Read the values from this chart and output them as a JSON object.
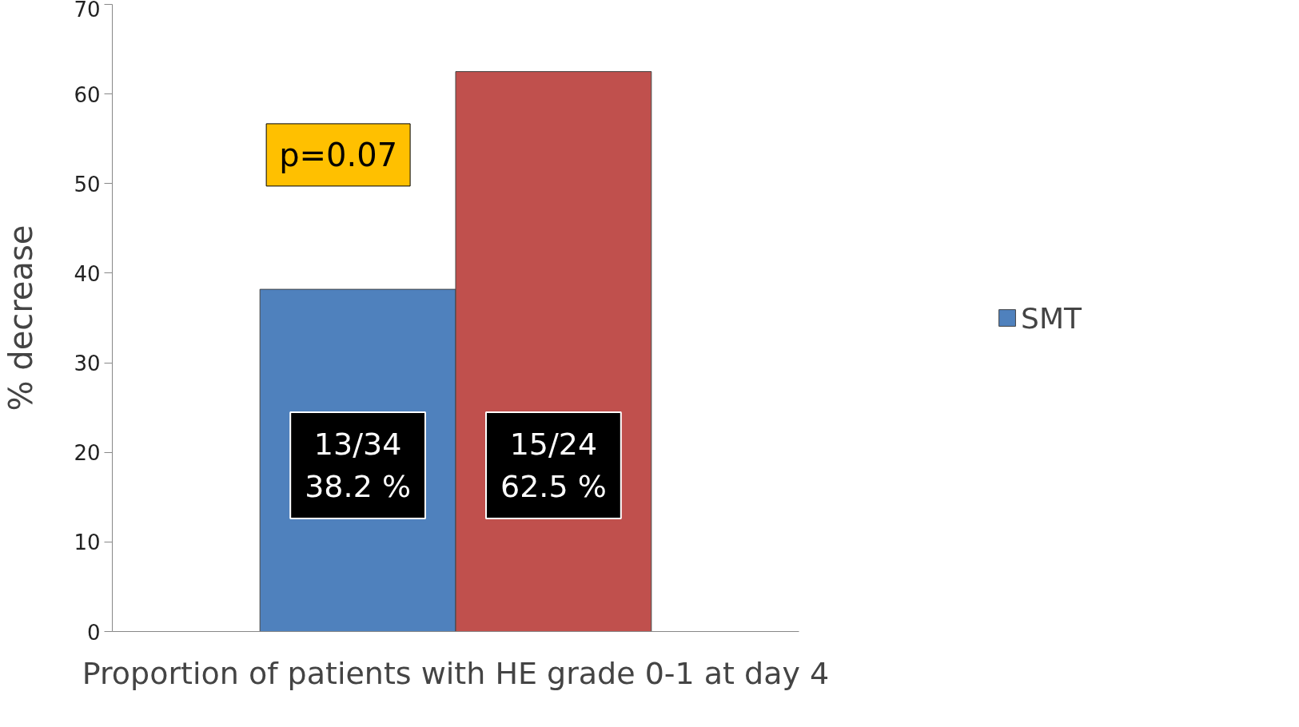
{
  "chart_data": {
    "type": "bar",
    "xlabel": "Proportion of patients with HE grade 0-1 at day 4",
    "ylabel": "% decrease",
    "categories": [
      null
    ],
    "series": [
      {
        "name": "SMT",
        "color": "#4f81bd",
        "values": [
          38.2
        ],
        "value_labels": [
          "13/34\n38.2 %"
        ]
      },
      {
        "color": "#c0504d",
        "values": [
          62.5
        ],
        "value_labels": [
          "15/24\n62.5 %"
        ]
      }
    ],
    "ylim": [
      0,
      70
    ],
    "yticks": [
      0,
      10,
      20,
      30,
      40,
      50,
      60,
      70
    ],
    "grid": false,
    "legend": "right",
    "annotations": [
      "p=0.07"
    ]
  }
}
